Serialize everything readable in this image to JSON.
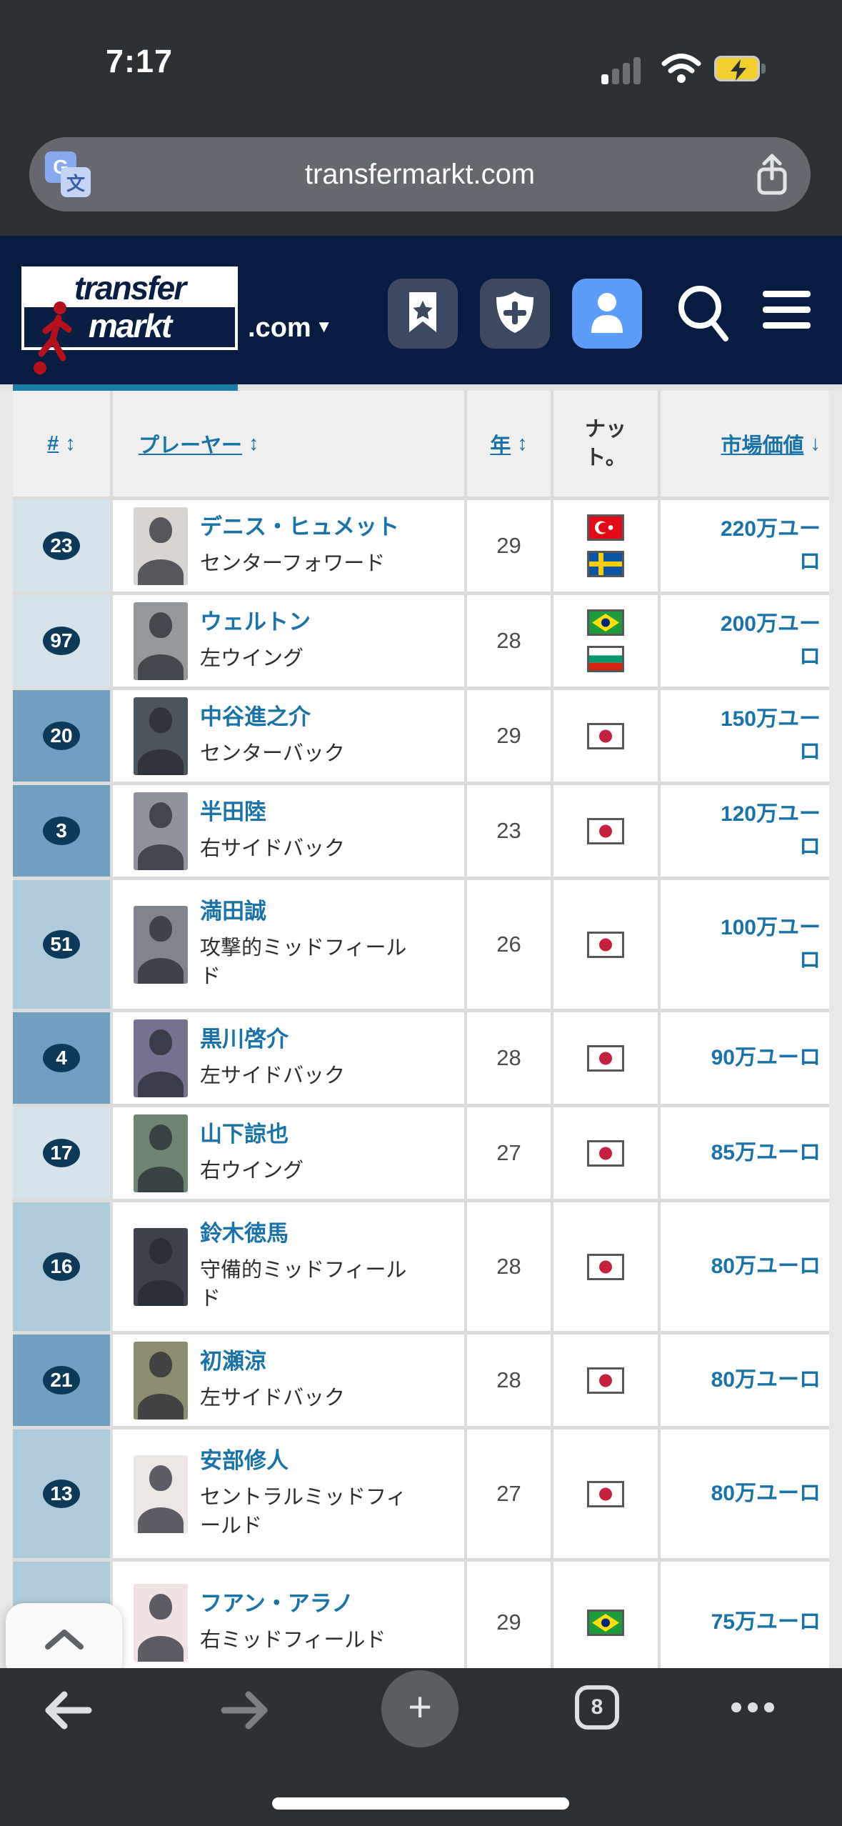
{
  "status_bar": {
    "time": "7:17"
  },
  "url_bar": {
    "domain": "transfermarkt.com"
  },
  "site_header": {
    "logo_top": "transfer",
    "logo_bottom": "markt",
    "tld": ".com",
    "tld_caret": "▼"
  },
  "table": {
    "headers": {
      "number": "#",
      "player": "プレーヤー",
      "age": "年",
      "nationality": "ナッ\nト。",
      "market_value": "市場価値",
      "sort_both": "↕",
      "sort_down": "↓"
    },
    "group_colors": {
      "light": "#d5e3ed",
      "medium": "#aecbdc",
      "steel": "#6fa0c0"
    },
    "link_color": "#1a73a8",
    "rows": [
      {
        "number": "23",
        "group": "light",
        "name": "デニス・ヒュメット",
        "position": "センターフォワード",
        "age": "29",
        "flags": [
          "turkey",
          "sweden"
        ],
        "value": "220万ユー\nロ",
        "photo_bg": "#d8d4cf"
      },
      {
        "number": "97",
        "group": "light",
        "name": "ウェルトン",
        "position": "左ウイング",
        "age": "28",
        "flags": [
          "brazil",
          "bulgaria"
        ],
        "value": "200万ユー\nロ",
        "photo_bg": "#95999c"
      },
      {
        "number": "20",
        "group": "steel",
        "name": "中谷進之介",
        "position": "センターバック",
        "age": "29",
        "flags": [
          "japan"
        ],
        "value": "150万ユー\nロ",
        "photo_bg": "#4e545b"
      },
      {
        "number": "3",
        "group": "steel",
        "name": "半田陸",
        "position": "右サイドバック",
        "age": "23",
        "flags": [
          "japan"
        ],
        "value": "120万ユー\nロ",
        "photo_bg": "#8e949a"
      },
      {
        "number": "51",
        "group": "medium",
        "name": "満田誠",
        "position": "攻撃的ミッドフィール\nド",
        "age": "26",
        "flags": [
          "japan"
        ],
        "value": "100万ユー\nロ",
        "photo_bg": "#80858c"
      },
      {
        "number": "4",
        "group": "steel",
        "name": "黒川啓介",
        "position": "左サイドバック",
        "age": "28",
        "flags": [
          "japan"
        ],
        "value": "90万ユーロ",
        "photo_bg": "#77708e"
      },
      {
        "number": "17",
        "group": "light",
        "name": "山下諒也",
        "position": "右ウイング",
        "age": "27",
        "flags": [
          "japan"
        ],
        "value": "85万ユーロ",
        "photo_bg": "#6f8573"
      },
      {
        "number": "16",
        "group": "medium",
        "name": "鈴木徳馬",
        "position": "守備的ミッドフィール\nド",
        "age": "28",
        "flags": [
          "japan"
        ],
        "value": "80万ユーロ",
        "photo_bg": "#3e434a"
      },
      {
        "number": "21",
        "group": "steel",
        "name": "初瀬涼",
        "position": "左サイドバック",
        "age": "28",
        "flags": [
          "japan"
        ],
        "value": "80万ユーロ",
        "photo_bg": "#8d8d70"
      },
      {
        "number": "13",
        "group": "medium",
        "name": "安部修人",
        "position": "セントラルミッドフィ\nールド",
        "age": "27",
        "flags": [
          "japan"
        ],
        "value": "80万ユーロ",
        "photo_bg": "#ece7e5"
      },
      {
        "number": "",
        "group": "medium",
        "name": "フアン・アラノ",
        "position": "右ミッドフィールド",
        "age": "29",
        "flags": [
          "brazil"
        ],
        "value": "75万ユーロ",
        "photo_bg": "#f1e3e4"
      }
    ]
  },
  "browser_bar": {
    "tab_count": "8"
  }
}
